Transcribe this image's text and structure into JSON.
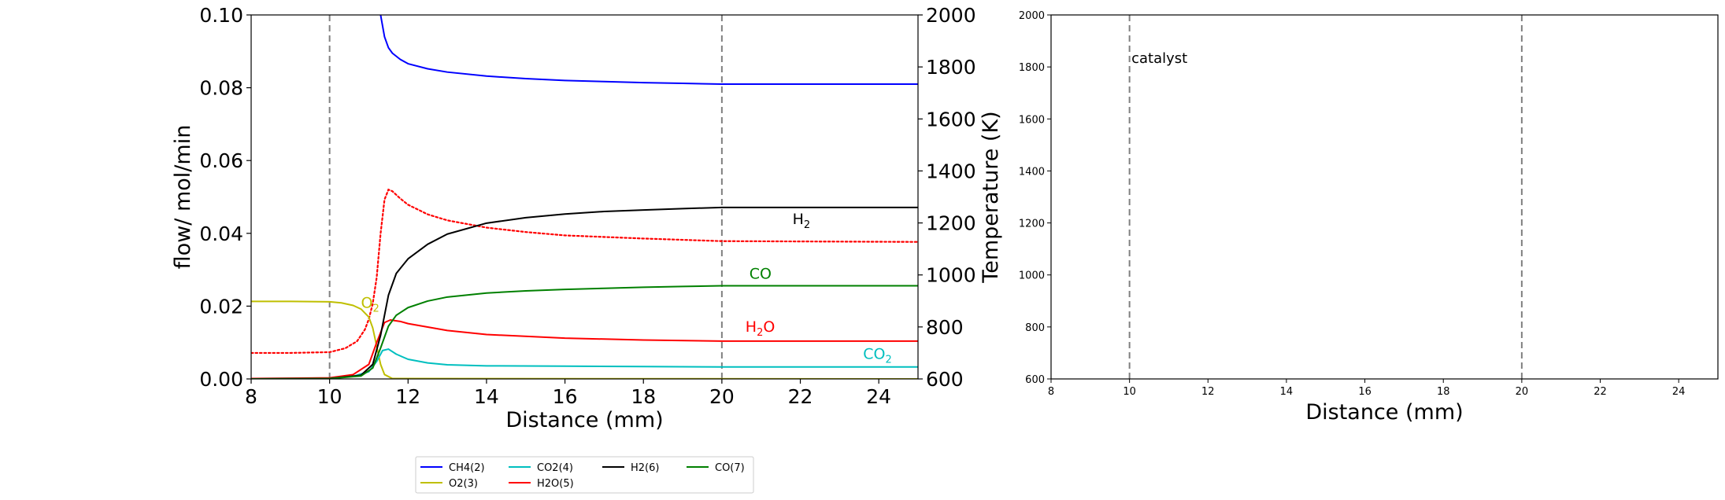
{
  "chart_data": [
    {
      "type": "line",
      "xlabel": "Distance (mm)",
      "ylabel": "flow/ mol/min",
      "y2label": "Temperature (K)",
      "xlim": [
        8,
        25
      ],
      "ylim": [
        0,
        0.1
      ],
      "y2lim": [
        600,
        2000
      ],
      "xticks": [
        "8",
        "10",
        "12",
        "14",
        "16",
        "18",
        "20",
        "22",
        "24"
      ],
      "yticks": [
        "0.00",
        "0.02",
        "0.04",
        "0.06",
        "0.08",
        "0.10"
      ],
      "y2ticks": [
        "600",
        "800",
        "1000",
        "1200",
        "1400",
        "1600",
        "1800",
        "2000"
      ],
      "vlines": [
        10,
        20
      ],
      "grid": false,
      "legend_placement": "below",
      "series": [
        {
          "name": "CH4(2)",
          "color": "#0000ff",
          "x": [
            11.3,
            11.35,
            11.4,
            11.5,
            11.6,
            11.8,
            12,
            12.5,
            13,
            14,
            15,
            16,
            17,
            18,
            19,
            20,
            25
          ],
          "y": [
            0.1,
            0.097,
            0.094,
            0.091,
            0.0895,
            0.0878,
            0.0866,
            0.0852,
            0.0843,
            0.0832,
            0.0825,
            0.082,
            0.0817,
            0.0814,
            0.0812,
            0.081,
            0.081
          ]
        },
        {
          "name": "O2(3)",
          "color": "#bfbf00",
          "x": [
            8,
            9,
            10,
            10.3,
            10.6,
            10.8,
            11.0,
            11.1,
            11.2,
            11.3,
            11.4,
            11.6,
            25
          ],
          "y": [
            0.0213,
            0.0213,
            0.0212,
            0.0209,
            0.0202,
            0.0192,
            0.017,
            0.014,
            0.009,
            0.004,
            0.0012,
            0.0001,
            0.0
          ]
        },
        {
          "name": "CO2(4)",
          "color": "#00bfbf",
          "x": [
            8,
            10,
            10.6,
            11.0,
            11.2,
            11.35,
            11.5,
            11.7,
            12,
            12.5,
            13,
            14,
            16,
            18,
            20,
            25
          ],
          "y": [
            0.0001,
            0.0002,
            0.0007,
            0.002,
            0.0048,
            0.0078,
            0.0082,
            0.0068,
            0.0054,
            0.0044,
            0.0039,
            0.0036,
            0.0035,
            0.0034,
            0.0033,
            0.0033
          ]
        },
        {
          "name": "H2O(5)",
          "color": "#ff0000",
          "x": [
            8,
            10,
            10.6,
            11.0,
            11.2,
            11.4,
            11.55,
            11.8,
            12,
            13,
            14,
            16,
            18,
            20,
            25
          ],
          "y": [
            0.0001,
            0.0003,
            0.0012,
            0.004,
            0.01,
            0.0155,
            0.0162,
            0.0158,
            0.0152,
            0.0133,
            0.0122,
            0.0112,
            0.0107,
            0.0104,
            0.0104
          ]
        },
        {
          "name": "H2(6)",
          "color": "#000000",
          "x": [
            8,
            10,
            10.8,
            11.1,
            11.3,
            11.5,
            11.7,
            12,
            12.5,
            13,
            14,
            15,
            16,
            17,
            18,
            19,
            20,
            25
          ],
          "y": [
            0.0,
            0.0001,
            0.001,
            0.004,
            0.012,
            0.023,
            0.029,
            0.033,
            0.037,
            0.0398,
            0.0428,
            0.0443,
            0.0453,
            0.046,
            0.0464,
            0.0468,
            0.0471,
            0.0471
          ]
        },
        {
          "name": "CO(7)",
          "color": "#008000",
          "x": [
            8,
            10,
            10.8,
            11.1,
            11.3,
            11.5,
            11.7,
            12,
            12.5,
            13,
            14,
            15,
            16,
            17,
            18,
            19,
            20,
            25
          ],
          "y": [
            0.0,
            0.0001,
            0.0008,
            0.003,
            0.0085,
            0.0145,
            0.0175,
            0.0196,
            0.0214,
            0.0225,
            0.0236,
            0.0242,
            0.0246,
            0.0249,
            0.0252,
            0.0254,
            0.0256,
            0.0256
          ]
        }
      ],
      "temperature": {
        "color": "#ff0000",
        "style": "dotted",
        "x": [
          8,
          9,
          10,
          10.4,
          10.7,
          10.9,
          11.0,
          11.1,
          11.2,
          11.3,
          11.4,
          11.5,
          11.6,
          11.8,
          12,
          12.5,
          13,
          14,
          15,
          16,
          18,
          20,
          25
        ],
        "y": [
          700,
          700,
          703,
          718,
          745,
          790,
          830,
          890,
          990,
          1160,
          1290,
          1328,
          1322,
          1294,
          1270,
          1233,
          1210,
          1182,
          1165,
          1152,
          1140,
          1130,
          1127
        ]
      },
      "annotations": [
        {
          "text": "O",
          "sub": "2",
          "x": 10.8,
          "y": 0.0195,
          "color": "#bfbf00"
        },
        {
          "text": "H",
          "sub": "2",
          "x": 21.8,
          "y": 0.0425,
          "color": "#000000"
        },
        {
          "text": "CO",
          "sub": "",
          "x": 20.7,
          "y": 0.0275,
          "color": "#008000"
        },
        {
          "text": "H",
          "sub": "2",
          "after": "O",
          "x": 20.6,
          "y": 0.013,
          "color": "#ff0000"
        },
        {
          "text": "CO",
          "sub": "2",
          "x": 23.6,
          "y": 0.0055,
          "color": "#00bfbf"
        }
      ]
    },
    {
      "type": "line",
      "xlabel": "Distance (mm)",
      "xlim": [
        8,
        25
      ],
      "ylim": [
        600,
        2000
      ],
      "xticks": [
        "8",
        "10",
        "12",
        "14",
        "16",
        "18",
        "20",
        "22",
        "24"
      ],
      "yticks": [
        "600",
        "800",
        "1000",
        "1200",
        "1400",
        "1600",
        "1800",
        "2000"
      ],
      "vlines": [
        10,
        20
      ],
      "annotations": [
        {
          "text": "catalyst",
          "x": 10.05,
          "y": 1815,
          "color": "#000000"
        }
      ]
    }
  ]
}
